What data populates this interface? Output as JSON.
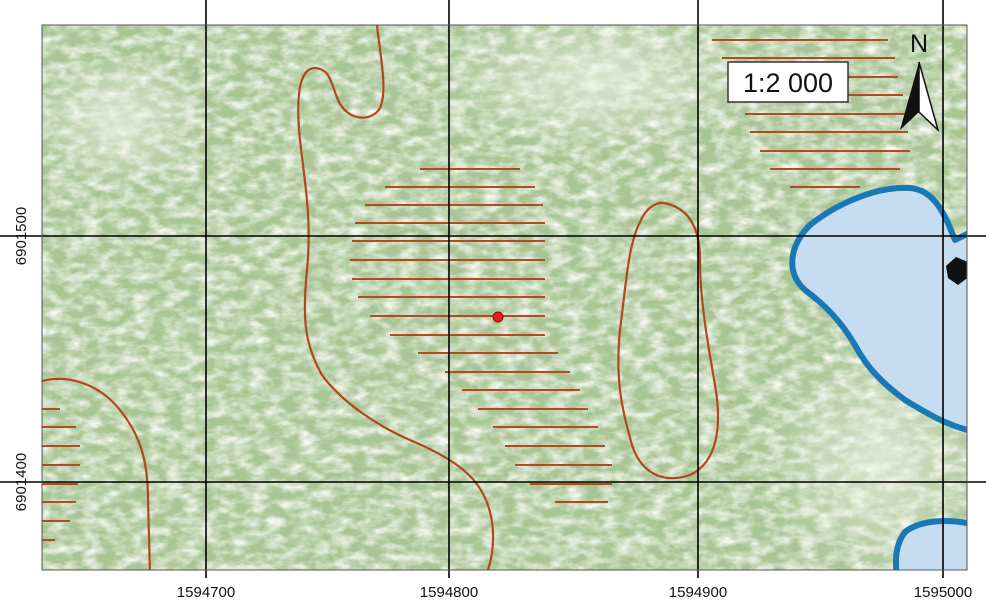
{
  "map": {
    "scale_text": "1:2 000",
    "north_label": "N",
    "x_ticks": [
      "1594700",
      "1594800",
      "1594900",
      "1595000"
    ],
    "y_ticks": [
      "6901500",
      "6901400"
    ],
    "colors": {
      "background_forest": "#a9c596",
      "grid_line": "#000000",
      "contour_line": "#b0481f",
      "water_fill": "#c4dcf0",
      "water_edge": "#1877b4",
      "marker": "#e02020"
    },
    "layers": [
      "aerial-imagery",
      "coordinate-grid",
      "contour-lines",
      "hatched-areas",
      "lakes",
      "point-marker"
    ]
  }
}
